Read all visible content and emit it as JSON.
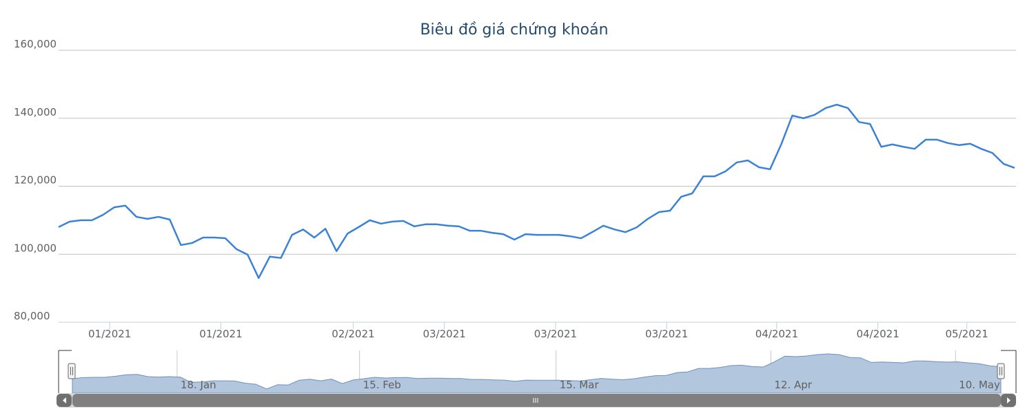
{
  "chart_data": {
    "type": "line",
    "title": "Biêu đồ giá chứng khoán",
    "color": "#3b82d6",
    "values": [
      108000,
      109600,
      110000,
      110000,
      111600,
      113800,
      114300,
      111000,
      110400,
      111000,
      110200,
      102700,
      103300,
      104900,
      104900,
      104700,
      101500,
      99900,
      93000,
      99300,
      98900,
      105700,
      107300,
      104900,
      107500,
      100900,
      106100,
      108000,
      110000,
      109000,
      109600,
      109800,
      108200,
      108800,
      108800,
      108400,
      108200,
      106900,
      106900,
      106300,
      105900,
      104300,
      105900,
      105700,
      105700,
      105700,
      105300,
      104700,
      106500,
      108400,
      107300,
      106500,
      107900,
      110400,
      112400,
      112800,
      116900,
      117900,
      122900,
      122900,
      124400,
      127000,
      127600,
      125600,
      125000,
      132300,
      140800,
      140000,
      141000,
      143000,
      144000,
      143000,
      138900,
      138300,
      131600,
      132300,
      131600,
      131000,
      133700,
      133700,
      132700,
      132100,
      132500,
      131000,
      129800,
      126600,
      125400
    ],
    "xlim": [
      0,
      86
    ],
    "xticks": [
      {
        "value": 4.6,
        "label": "01/2021"
      },
      {
        "value": 14.6,
        "label": "01/2021"
      },
      {
        "value": 26.5,
        "label": "02/2021"
      },
      {
        "value": 34.7,
        "label": "03/2021"
      },
      {
        "value": 44.7,
        "label": "03/2021"
      },
      {
        "value": 54.7,
        "label": "03/2021"
      },
      {
        "value": 64.6,
        "label": "04/2021"
      },
      {
        "value": 73.7,
        "label": "04/2021"
      },
      {
        "value": 81.7,
        "label": "05/2021"
      }
    ],
    "ylim": [
      80000,
      160000
    ],
    "yticks": [
      {
        "value": 80000,
        "label": "80,000"
      },
      {
        "value": 100000,
        "label": "100,000"
      },
      {
        "value": 120000,
        "label": "120,000"
      },
      {
        "value": 140000,
        "label": "140,000"
      },
      {
        "value": 160000,
        "label": "160,000"
      }
    ],
    "grid": true,
    "navigator": {
      "xticks": [
        {
          "value": 9.7,
          "label": "18. Jan"
        },
        {
          "value": 26.6,
          "label": "15. Feb"
        },
        {
          "value": 44.8,
          "label": "15. Mar"
        },
        {
          "value": 64.7,
          "label": "12. Apr"
        },
        {
          "value": 81.8,
          "label": "10. May"
        }
      ]
    }
  }
}
